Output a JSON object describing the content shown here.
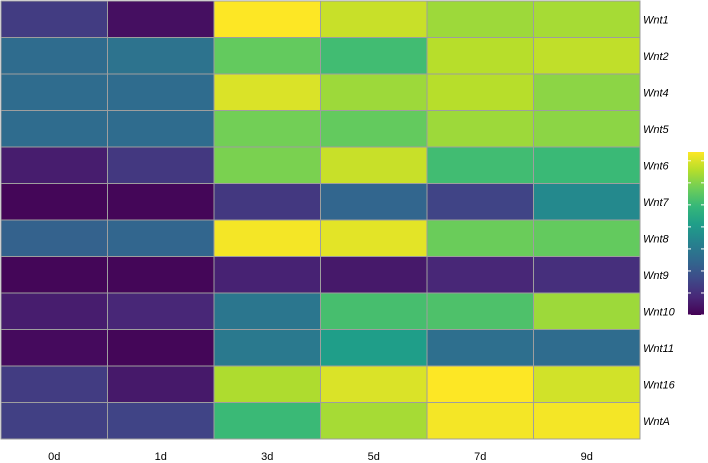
{
  "chart_data": {
    "type": "heatmap",
    "title": "",
    "xlabel": "",
    "ylabel": "",
    "columns": [
      "0d",
      "1d",
      "3d",
      "5d",
      "7d",
      "9d"
    ],
    "rows": [
      "Wnt1",
      "Wnt2",
      "Wnt4",
      "Wnt5",
      "Wnt6",
      "Wnt7",
      "Wnt8",
      "Wnt9",
      "Wnt10",
      "Wnt11",
      "Wnt16",
      "WntA"
    ],
    "values": [
      [
        1.3,
        0.3,
        7.4,
        6.8,
        6.3,
        6.4
      ],
      [
        2.6,
        2.8,
        5.6,
        5.1,
        6.6,
        6.7
      ],
      [
        2.6,
        2.6,
        7.0,
        6.3,
        6.6,
        6.1
      ],
      [
        2.6,
        2.6,
        5.8,
        5.6,
        6.3,
        6.1
      ],
      [
        0.6,
        1.2,
        5.9,
        6.8,
        5.1,
        5.0
      ],
      [
        0.1,
        0.1,
        1.2,
        2.4,
        1.5,
        3.5
      ],
      [
        2.3,
        2.4,
        7.3,
        7.1,
        5.7,
        5.6
      ],
      [
        0.1,
        0.1,
        0.7,
        0.5,
        0.8,
        1.0
      ],
      [
        0.6,
        0.8,
        2.9,
        5.2,
        5.3,
        6.3
      ],
      [
        0.2,
        0.1,
        3.0,
        4.1,
        2.7,
        2.6
      ],
      [
        1.3,
        0.5,
        6.5,
        7.0,
        7.4,
        6.9
      ],
      [
        1.4,
        1.5,
        5.0,
        6.4,
        7.3,
        7.3
      ]
    ],
    "colorscale": "viridis",
    "legend_range": [
      0,
      7.4
    ],
    "legend_ticks": [
      0,
      1,
      2,
      3,
      4,
      5,
      6,
      7
    ],
    "legend_position": "right",
    "cell_border_color": "#9e9e9e"
  }
}
